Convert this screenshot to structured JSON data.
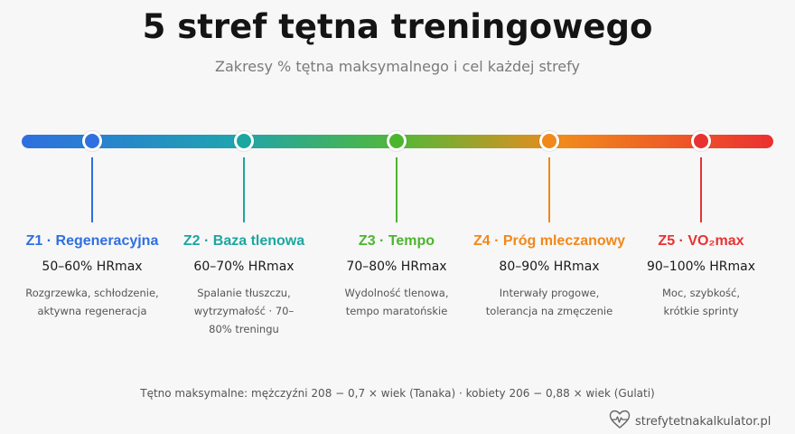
{
  "header": {
    "title": "5 stref tętna treningowego",
    "subtitle": "Zakresy % tętna maksymalnego i cel każdej strefy"
  },
  "zones": [
    {
      "label": "Z1 · Regeneracyjna",
      "range": "50–60% HRmax",
      "description": "Rozgrzewka, schłodzenie, aktywna regeneracja",
      "color": "#2f6fe0"
    },
    {
      "label": "Z2 · Baza tlenowa",
      "range": "60–70% HRmax",
      "description": "Spalanie tłuszczu, wytrzymałość · 70–80% treningu",
      "color": "#1ba7a0"
    },
    {
      "label": "Z3 · Tempo",
      "range": "70–80% HRmax",
      "description": "Wydolność tlenowa, tempo maratońskie",
      "color": "#4cb52e"
    },
    {
      "label": "Z4 · Próg mleczanowy",
      "range": "80–90% HRmax",
      "description": "Interwały progowe, tolerancja na zmęczenie",
      "color": "#f0881a"
    },
    {
      "label": "Z5 · VO₂max",
      "range": "90–100% HRmax",
      "description": "Moc, szybkość, krótkie sprinty",
      "color": "#e83232"
    }
  ],
  "footer": {
    "formula": "Tętno maksymalne: mężczyźni 208 − 0,7 × wiek (Tanaka) · kobiety 206 − 0,88 × wiek (Gulati)",
    "brand": "strefytetnakalkulator.pl",
    "brand_icon": "heart-pulse-icon"
  }
}
